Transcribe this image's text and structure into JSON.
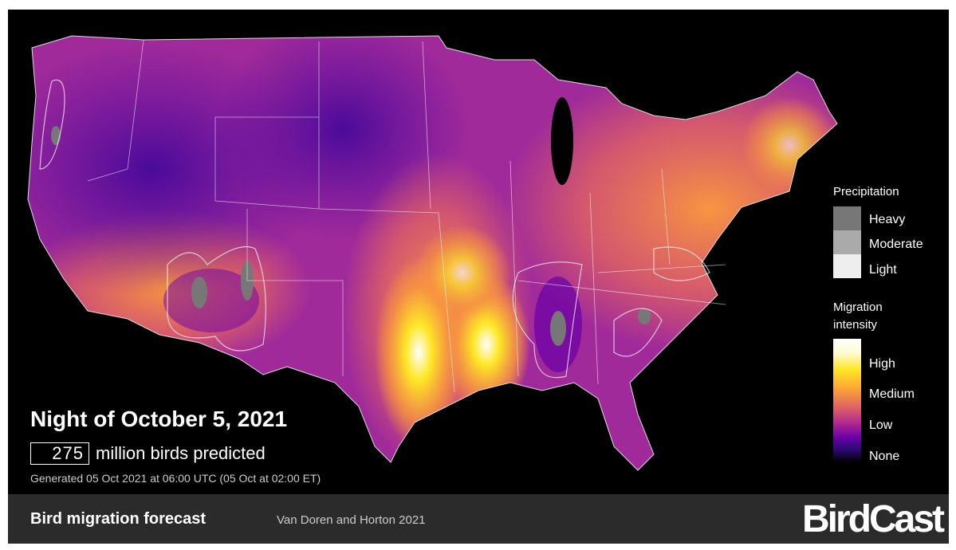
{
  "map": {
    "title": "Night of October 5, 2021",
    "birds_count": 275,
    "birds_label": "million birds predicted",
    "generated": "Generated 05 Oct 2021 at 06:00 UTC (05 Oct at 02:00 ET)"
  },
  "legend": {
    "precipitation": {
      "title": "Precipitation",
      "items": [
        "Heavy",
        "Moderate",
        "Light"
      ]
    },
    "migration": {
      "title": "Migration intensity",
      "items": [
        "High",
        "Medium",
        "Low",
        "None"
      ]
    }
  },
  "footer": {
    "title": "Bird migration forecast",
    "citation": "Van Doren and Horton 2021",
    "brand": "BirdCast"
  }
}
